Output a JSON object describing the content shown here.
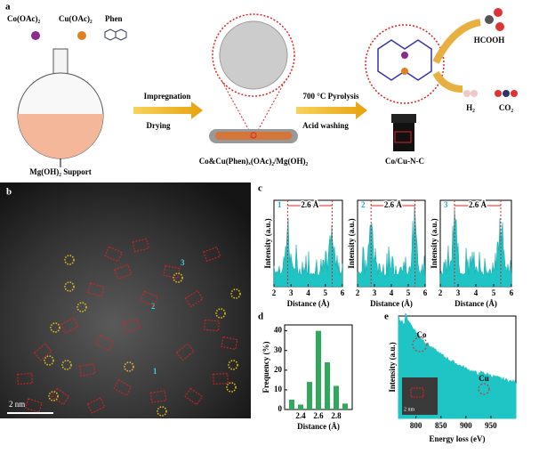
{
  "panel_a": {
    "label": "a",
    "precursors": [
      "Co(OAc)₂",
      "Cu(OAc)₂",
      "Phen"
    ],
    "support": "Mg(OH)₂ Support",
    "step1": [
      "Impregnation",
      "Drying"
    ],
    "intermediate": "Co&Cu(Phen)ₓ(OAc)₂/Mg(OH)₂",
    "step2": [
      "700 °C Pyrolysis",
      "Acid washing"
    ],
    "product": "Co/Cu-N-C",
    "outputs": [
      "HCOOH",
      "H₂",
      "CO₂"
    ]
  },
  "panel_b": {
    "label": "b",
    "scale_bar": "2 nm",
    "sites": [
      "1",
      "2",
      "3"
    ]
  },
  "panel_c": {
    "label": "c",
    "x_label": "Distance (Å)",
    "y_label": "Intensity (a.u.)",
    "spacing": "2.6 Å",
    "xlim": [
      2,
      6
    ],
    "xticks": [
      2,
      3,
      4,
      5,
      6
    ],
    "plots": [
      "1",
      "2",
      "3"
    ]
  },
  "panel_d": {
    "label": "d",
    "type": "bar",
    "x_label": "Distance (Å)",
    "y_label": "Frequency (%)",
    "x": [
      2.3,
      2.4,
      2.5,
      2.6,
      2.7,
      2.8,
      2.9
    ],
    "values": [
      5,
      2.5,
      14,
      40,
      24,
      12,
      3
    ],
    "color": "#2eaa5a",
    "xlim": [
      2.22,
      2.98
    ],
    "ylim": [
      0,
      43
    ],
    "xticks": [
      2.4,
      2.6,
      2.8
    ],
    "yticks": [
      0,
      10,
      20,
      30,
      40
    ]
  },
  "panel_e": {
    "label": "e",
    "x_label": "Energy loss (eV)",
    "y_label": "Intensity (a.u.)",
    "edges": [
      "Co",
      "Cu"
    ],
    "inset_scale": "2 nm",
    "xlim": [
      765,
      1000
    ],
    "xticks": [
      800,
      850,
      900,
      950
    ],
    "color": "#1fc4c4"
  }
}
